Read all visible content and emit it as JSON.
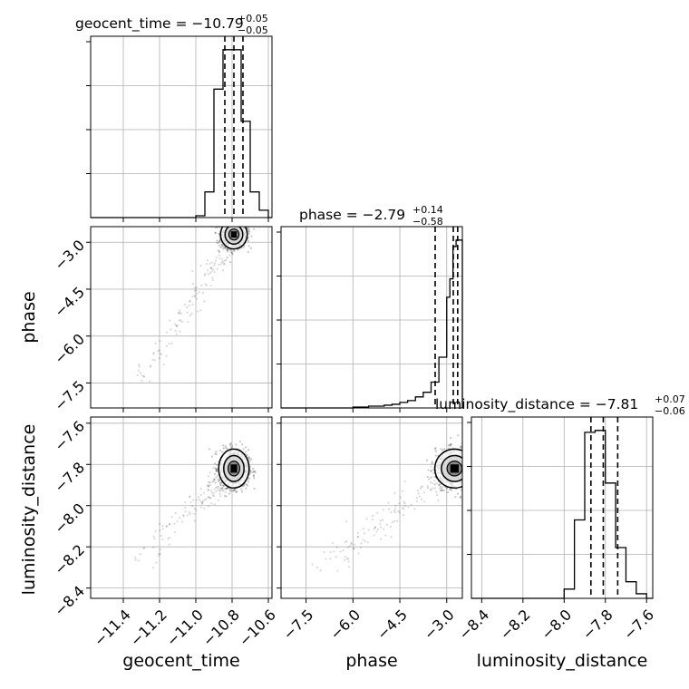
{
  "chart_data": {
    "type": "corner",
    "grid": true,
    "parameters": [
      {
        "name": "geocent_time",
        "xlabel": "geocent_time",
        "title": {
          "text": "geocent_time = −10.79",
          "plus": "+0.05",
          "minus": "−0.05"
        },
        "ticks": [
          "−11.4",
          "−11.2",
          "−11.0",
          "−10.8",
          "−10.6"
        ],
        "tick_values": [
          -11.4,
          -11.2,
          -11.0,
          -10.8,
          -10.6
        ],
        "range": [
          -11.58,
          -10.58
        ],
        "quantiles": [
          -10.84,
          -10.79,
          -10.74
        ],
        "histogram": {
          "edges": [
            -11.0,
            -10.95,
            -10.9,
            -10.85,
            -10.8,
            -10.75,
            -10.7,
            -10.65,
            -10.6
          ],
          "counts": [
            2,
            28,
            140,
            183,
            183,
            105,
            28,
            8
          ]
        }
      },
      {
        "name": "phase",
        "xlabel": "phase",
        "ylabel": "phase",
        "title": {
          "text": "phase = −2.79",
          "plus": "+0.14",
          "minus": "−0.58"
        },
        "ticks": [
          "−7.5",
          "−6.0",
          "−4.5",
          "−3.0"
        ],
        "tick_values": [
          -7.5,
          -6.0,
          -4.5,
          -3.0
        ],
        "range": [
          -8.3,
          -2.5
        ],
        "quantiles": [
          -3.37,
          -2.79,
          -2.65
        ],
        "histogram": {
          "edges": [
            -6.0,
            -5.5,
            -5.0,
            -4.75,
            -4.5,
            -4.25,
            -4.0,
            -3.75,
            -3.5,
            -3.25,
            -3.0,
            -2.9,
            -2.8,
            -2.7,
            -2.6,
            -2.5
          ],
          "counts": [
            1,
            2,
            3,
            4,
            6,
            8,
            12,
            17,
            28,
            55,
            120,
            140,
            175,
            182,
            182
          ]
        }
      },
      {
        "name": "luminosity_distance",
        "xlabel": "luminosity_distance",
        "ylabel": "luminosity_distance",
        "title": {
          "text": "luminosity_distance = −7.81",
          "plus": "+0.07",
          "minus": "−0.06"
        },
        "ticks": [
          "−8.4",
          "−8.2",
          "−8.0",
          "−7.8",
          "−7.6"
        ],
        "tick_values": [
          -8.4,
          -8.2,
          -8.0,
          -7.8,
          -7.6
        ],
        "range": [
          -8.45,
          -7.57
        ],
        "quantiles": [
          -7.87,
          -7.81,
          -7.74
        ],
        "histogram": {
          "edges": [
            -8.0,
            -7.95,
            -7.9,
            -7.85,
            -7.8,
            -7.75,
            -7.7,
            -7.65,
            -7.6
          ],
          "counts": [
            10,
            85,
            180,
            182,
            125,
            55,
            18,
            5
          ]
        }
      }
    ],
    "ylabels": {
      "phase": "phase",
      "luminosity_distance": "luminosity_distance"
    }
  }
}
